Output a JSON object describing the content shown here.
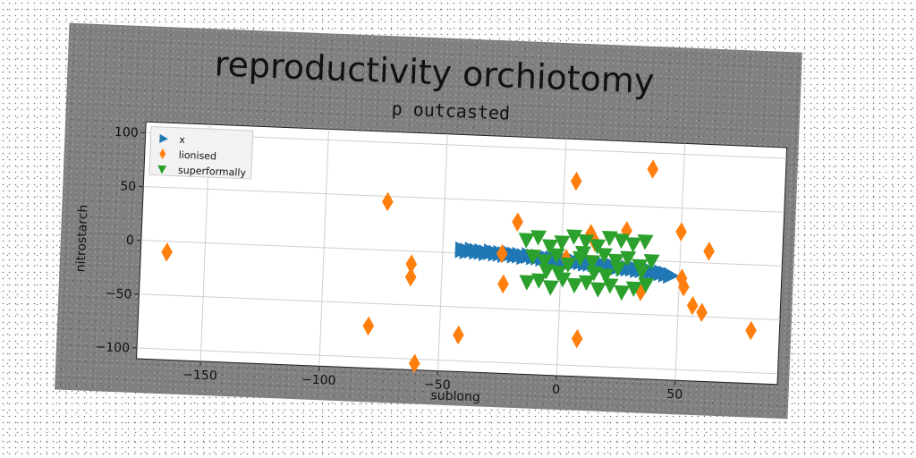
{
  "chart_data": {
    "type": "scatter",
    "title": "reproductivity orchiotomy",
    "subtitle": "p outcasted",
    "xlabel": "sublong",
    "ylabel": "nitrostarch",
    "xlim": [
      -177,
      93
    ],
    "ylim": [
      -110,
      110
    ],
    "xticks": [
      -150,
      -100,
      -50,
      0,
      50
    ],
    "yticks": [
      -100,
      -50,
      0,
      50,
      100
    ],
    "grid": true,
    "legend_position": "top-left",
    "series": [
      {
        "name": "x",
        "marker": "triangle-right",
        "color": "#1f77b4",
        "x": [
          -42,
          -40,
          -38,
          -36,
          -34,
          -32,
          -30,
          -28,
          -26,
          -24,
          -22,
          -20,
          -18,
          -16,
          -14,
          -12,
          -10,
          -8,
          -6,
          -4,
          -2,
          0,
          2,
          4,
          6,
          8,
          10,
          12,
          14,
          16,
          18,
          20,
          22,
          24,
          26,
          28,
          30,
          32,
          34,
          36,
          38,
          40,
          42,
          44,
          46
        ],
        "y": [
          3,
          2,
          3,
          2,
          2,
          1,
          2,
          1,
          1,
          0,
          1,
          0,
          0,
          -1,
          0,
          -1,
          -1,
          -2,
          -2,
          -2,
          -3,
          -3,
          -3,
          -4,
          -4,
          -4,
          -5,
          -5,
          -5,
          -6,
          -6,
          -6,
          -7,
          -7,
          -8,
          -8,
          -8,
          -9,
          -9,
          -10,
          -10,
          -11,
          -11,
          -12,
          -13
        ]
      },
      {
        "name": "lionised",
        "marker": "thin-diamond",
        "color": "#ff7f0e",
        "x": [
          -166,
          -74,
          -63,
          -63,
          -60,
          -80,
          -42,
          -24,
          -19,
          -25,
          2,
          5,
          8,
          12,
          14,
          27,
          37,
          34,
          50,
          52,
          56,
          60,
          62,
          81,
          51
        ],
        "y": [
          -10,
          45,
          -12,
          -24,
          -104,
          -71,
          -76,
          -27,
          31,
          1,
          -1,
          71,
          -75,
          23,
          15,
          27,
          85,
          -29,
          28,
          -23,
          -40,
          -46,
          11,
          -61,
          -15
        ]
      },
      {
        "name": "superformally",
        "marker": "triangle-down",
        "color": "#2ca02c",
        "x": [
          -15,
          -10,
          -5,
          0,
          5,
          10,
          15,
          20,
          25,
          30,
          35,
          -12,
          -7,
          -2,
          3,
          8,
          13,
          18,
          23,
          28,
          33,
          38,
          -14,
          -9,
          -4,
          1,
          6,
          11,
          16,
          21,
          26,
          31,
          36,
          -6,
          14,
          24,
          34,
          9,
          -1,
          19
        ],
        "y": [
          15,
          18,
          10,
          14,
          20,
          16,
          12,
          20,
          18,
          15,
          18,
          0,
          -4,
          2,
          -6,
          0,
          -3,
          4,
          -1,
          2,
          -5,
          0,
          -24,
          -22,
          -28,
          -20,
          -25,
          -22,
          -28,
          -24,
          -30,
          -26,
          -22,
          -13,
          -13,
          -8,
          -10,
          5,
          -14,
          -15
        ]
      }
    ]
  }
}
